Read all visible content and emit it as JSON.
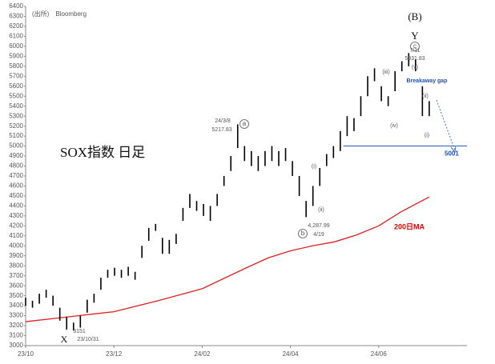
{
  "chart_data": {
    "type": "ohlc",
    "title": "SOX指数 日足",
    "source": "(出所)　Bloomberg",
    "xlim": [
      0,
      10
    ],
    "xticks": [
      {
        "value": 0,
        "label": "23/10"
      },
      {
        "value": 2,
        "label": "23/12"
      },
      {
        "value": 4,
        "label": "24/02"
      },
      {
        "value": 6,
        "label": "24/04"
      },
      {
        "value": 8,
        "label": "24/06"
      }
    ],
    "ylim": [
      3000,
      6400
    ],
    "yticks": [
      3000,
      3100,
      3200,
      3300,
      3400,
      3500,
      3600,
      3700,
      3800,
      3900,
      4000,
      4100,
      4200,
      4300,
      4400,
      4500,
      4600,
      4700,
      4800,
      4900,
      5000,
      5100,
      5200,
      5300,
      5400,
      5500,
      5600,
      5700,
      5800,
      5900,
      6000,
      6100,
      6200,
      6300,
      6400
    ],
    "x": [
      0,
      0.155,
      0.31,
      0.465,
      0.62,
      0.775,
      0.93,
      1.085,
      1.24,
      1.395,
      1.55,
      1.705,
      1.86,
      2.015,
      2.17,
      2.325,
      2.48,
      2.635,
      2.79,
      2.945,
      3.1,
      3.255,
      3.41,
      3.565,
      3.72,
      3.875,
      4.03,
      4.185,
      4.34,
      4.495,
      4.65,
      4.805,
      4.96,
      5.115,
      5.27,
      5.425,
      5.58,
      5.735,
      5.89,
      6.045,
      6.2,
      6.355,
      6.51,
      6.665,
      6.82,
      6.975,
      7.13,
      7.285,
      7.44,
      7.595,
      7.75,
      7.905,
      8.06,
      8.215,
      8.37,
      8.525,
      8.68,
      8.835,
      8.99,
      9.145
    ],
    "low": [
      3400,
      3380,
      3420,
      3480,
      3400,
      3250,
      3160,
      3151,
      3180,
      3330,
      3430,
      3560,
      3680,
      3700,
      3680,
      3700,
      3660,
      3880,
      4050,
      4150,
      3920,
      3920,
      4020,
      4250,
      4380,
      4350,
      4300,
      4250,
      4400,
      4600,
      4750,
      4980,
      4850,
      4800,
      4750,
      4800,
      4850,
      4800,
      4850,
      4700,
      4500,
      4288,
      4400,
      4600,
      4800,
      4880,
      4950,
      5100,
      5150,
      5300,
      5500,
      5650,
      5450,
      5400,
      5550,
      5750,
      5800,
      5750,
      5300,
      5300
    ],
    "high": [
      3480,
      3450,
      3520,
      3560,
      3500,
      3380,
      3290,
      3230,
      3300,
      3460,
      3520,
      3680,
      3760,
      3780,
      3760,
      3790,
      3740,
      4000,
      4180,
      4220,
      4080,
      4060,
      4120,
      4380,
      4520,
      4450,
      4420,
      4400,
      4520,
      4700,
      4900,
      5218,
      5000,
      4950,
      4900,
      4950,
      5000,
      4950,
      4980,
      4850,
      4700,
      4450,
      4600,
      4780,
      4920,
      5000,
      5150,
      5300,
      5280,
      5500,
      5700,
      5780,
      5600,
      5500,
      5750,
      5850,
      5932,
      5870,
      5600,
      5450
    ],
    "color": "#000000",
    "ma": {
      "name": "200日MA",
      "color": "#e02020",
      "x": [
        0,
        1,
        2,
        3,
        4,
        5,
        5.5,
        6,
        6.5,
        7,
        7.5,
        8,
        8.5,
        9.145
      ],
      "values": [
        3240,
        3290,
        3340,
        3450,
        3570,
        3780,
        3880,
        3950,
        4000,
        4040,
        4110,
        4200,
        4340,
        4490
      ]
    },
    "support": {
      "label": "5001",
      "value": 5001,
      "x": [
        7.2,
        10
      ],
      "color": "#4472c4"
    },
    "annotations": [
      "(B)",
      "Y",
      "c",
      "7/11",
      "5931.83",
      "(v)",
      "(iii)",
      "(iv)",
      "(ii)",
      "(i)",
      "Breakaway gap",
      "24/3/8",
      "5217.83",
      "a",
      "b",
      "4,287.99",
      "4/19",
      "(i)",
      "(ii)",
      "3151",
      "X",
      "23/10/31"
    ]
  }
}
